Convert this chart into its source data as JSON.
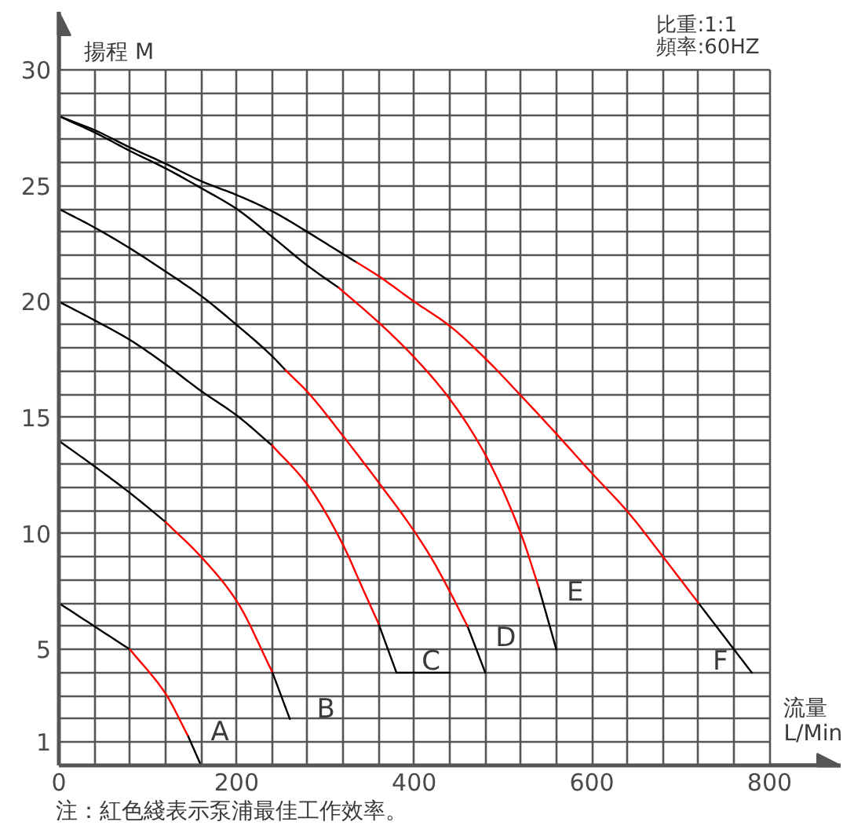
{
  "chart_data": {
    "type": "line",
    "xlabel": "流量\nL/Min",
    "ylabel": "揚程 M",
    "annotations": [
      "比重:1:1",
      "頻率:60HZ",
      "注：紅色綫表示泵浦最佳工作效率。"
    ],
    "xlim": [
      0,
      880
    ],
    "ylim": [
      0,
      32.5
    ],
    "xticks": [
      0,
      {
        "value": 40,
        "label": null
      },
      {
        "value": 80,
        "label": null
      },
      {
        "value": 120,
        "label": null
      },
      {
        "value": 160,
        "label": null
      },
      200,
      {
        "value": 240,
        "label": null
      },
      {
        "value": 280,
        "label": null
      },
      {
        "value": 320,
        "label": null
      },
      {
        "value": 360,
        "label": null
      },
      400,
      {
        "value": 440,
        "label": null
      },
      {
        "value": 480,
        "label": null
      },
      {
        "value": 520,
        "label": null
      },
      {
        "value": 560,
        "label": null
      },
      600,
      {
        "value": 640,
        "label": null
      },
      {
        "value": 680,
        "label": null
      },
      {
        "value": 720,
        "label": null
      },
      {
        "value": 760,
        "label": null
      },
      800
    ],
    "yticks": [
      {
        "value": 0,
        "label": null
      },
      1,
      {
        "value": 2,
        "label": null
      },
      {
        "value": 3,
        "label": null
      },
      {
        "value": 4,
        "label": null
      },
      5,
      {
        "value": 6,
        "label": null
      },
      {
        "value": 7,
        "label": null
      },
      {
        "value": 8,
        "label": null
      },
      {
        "value": 9,
        "label": null
      },
      10,
      {
        "value": 11,
        "label": null
      },
      {
        "value": 12,
        "label": null
      },
      {
        "value": 13,
        "label": null
      },
      {
        "value": 14,
        "label": null
      },
      15,
      {
        "value": 16,
        "label": null
      },
      {
        "value": 17,
        "label": null
      },
      {
        "value": 18,
        "label": null
      },
      {
        "value": 19,
        "label": null
      },
      20,
      {
        "value": 21,
        "label": null
      },
      {
        "value": 22,
        "label": null
      },
      {
        "value": 23,
        "label": null
      },
      {
        "value": 24,
        "label": null
      },
      25,
      {
        "value": 26,
        "label": null
      },
      {
        "value": 27,
        "label": null
      },
      {
        "value": 28,
        "label": null
      },
      {
        "value": 29,
        "label": null
      },
      30
    ],
    "grid": true,
    "series": [
      {
        "name": "A",
        "color": "#000000",
        "x": [
          0,
          40,
          80,
          120,
          145,
          160
        ],
        "values": [
          7,
          6.0,
          5.0,
          null,
          1.3,
          0
        ]
      },
      {
        "color": "#ff0000",
        "x": [
          80,
          120,
          145
        ],
        "values": [
          5.0,
          3.1,
          1.3
        ]
      },
      {
        "name": "B",
        "color": "#000000",
        "x": [
          0,
          40,
          80,
          120,
          160,
          240,
          260
        ],
        "values": [
          14,
          12.9,
          11.75,
          10.5,
          null,
          4.05,
          2.0
        ]
      },
      {
        "color": "#ff0000",
        "x": [
          120,
          160,
          200,
          240
        ],
        "values": [
          10.5,
          9.0,
          7.1,
          4.05
        ]
      },
      {
        "name": "C",
        "color": "#000000",
        "x": [
          0,
          40,
          80,
          120,
          160,
          200,
          240,
          280,
          360,
          380
        ],
        "values": [
          20,
          19.2,
          18.35,
          17.3,
          16.15,
          15.1,
          13.8,
          null,
          6.1,
          4.0
        ]
      },
      {
        "color": "#ff0000",
        "x": [
          240,
          280,
          320,
          340,
          360
        ],
        "values": [
          13.8,
          12.1,
          9.5,
          7.8,
          6.1
        ]
      },
      {
        "name": "D",
        "color": "#000000",
        "x": [
          0,
          40,
          80,
          120,
          160,
          200,
          240,
          255,
          280,
          460,
          480
        ],
        "values": [
          24,
          23.2,
          22.3,
          21.3,
          20.25,
          19.0,
          17.65,
          17.05,
          null,
          6.0,
          4.0
        ]
      },
      {
        "color": "#ff0000",
        "x": [
          255,
          280,
          320,
          360,
          400,
          420,
          440,
          460
        ],
        "values": [
          17.05,
          16.1,
          14.2,
          12.2,
          10.1,
          8.9,
          7.5,
          6.0
        ]
      },
      {
        "name": "E",
        "color": "#000000",
        "x": [
          0,
          40,
          80,
          120,
          160,
          200,
          240,
          280,
          315,
          360,
          540,
          560
        ],
        "values": [
          28,
          27.3,
          26.5,
          25.75,
          24.9,
          24.0,
          22.8,
          21.55,
          20.6,
          null,
          7.7,
          5.0
        ]
      },
      {
        "color": "#ff0000",
        "x": [
          315,
          360,
          400,
          440,
          480,
          520,
          540
        ],
        "values": [
          20.6,
          19.1,
          17.6,
          15.8,
          13.4,
          10.0,
          7.7
        ]
      },
      {
        "name": "F",
        "color": "#000000",
        "x": [
          0,
          40,
          80,
          120,
          160,
          200,
          240,
          280,
          320,
          335,
          360,
          720,
          760,
          780
        ],
        "values": [
          28,
          27.4,
          26.65,
          25.95,
          25.2,
          24.6,
          23.9,
          23.0,
          22.05,
          21.7,
          null,
          7.0,
          5.0,
          4.0
        ]
      },
      {
        "color": "#ff0000",
        "x": [
          335,
          360,
          400,
          440,
          480,
          520,
          560,
          600,
          640,
          680,
          720
        ],
        "values": [
          21.7,
          21.1,
          20.0,
          18.95,
          17.55,
          15.95,
          14.3,
          12.6,
          10.95,
          9.0,
          7.0
        ]
      },
      {
        "color": "#000000",
        "x": [
          380,
          440
        ],
        "values": [
          4,
          4
        ]
      }
    ]
  }
}
